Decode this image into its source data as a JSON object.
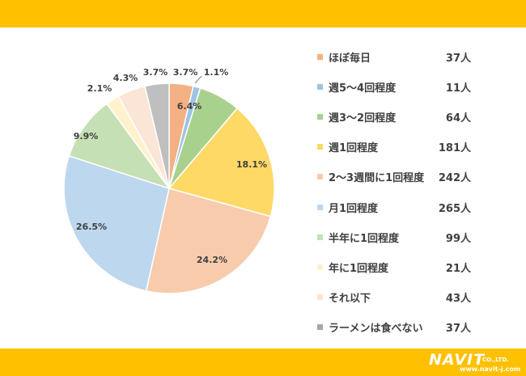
{
  "colors": {
    "band": "#FFC000",
    "pie": [
      "#F4B183",
      "#9DC3E6",
      "#A9D18E",
      "#FFD966",
      "#F8CBAD",
      "#BDD7EE",
      "#C5E0B4",
      "#FFF2CC",
      "#FBE5D6",
      "#BFBFBF"
    ]
  },
  "brand": {
    "name": "NAVIT",
    "suffix": "CO.,LTD.",
    "url": "www.navit-j.com"
  },
  "chart_data": {
    "type": "pie",
    "categories": [
      "ほぼ毎日",
      "週5〜4回程度",
      "週3〜2回程度",
      "週1回程度",
      "2〜3週間に1回程度",
      "月1回程度",
      "半年に1回程度",
      "年に1回程度",
      "それ以下",
      "ラーメンは食べない"
    ],
    "counts": [
      "37人",
      "11人",
      "64人",
      "181人",
      "242人",
      "265人",
      "99人",
      "21人",
      "43人",
      "37人"
    ],
    "values": [
      3.7,
      1.1,
      6.4,
      18.1,
      24.2,
      26.5,
      9.9,
      2.1,
      4.3,
      3.7
    ],
    "slice_labels": [
      "3.7%",
      "1.1%",
      "6.4%",
      "18.1%",
      "24.2%",
      "26.5%",
      "9.9%",
      "2.1%",
      "4.3%",
      "3.7%"
    ],
    "start": "12 o'clock, clockwise",
    "legend_position": "right"
  }
}
